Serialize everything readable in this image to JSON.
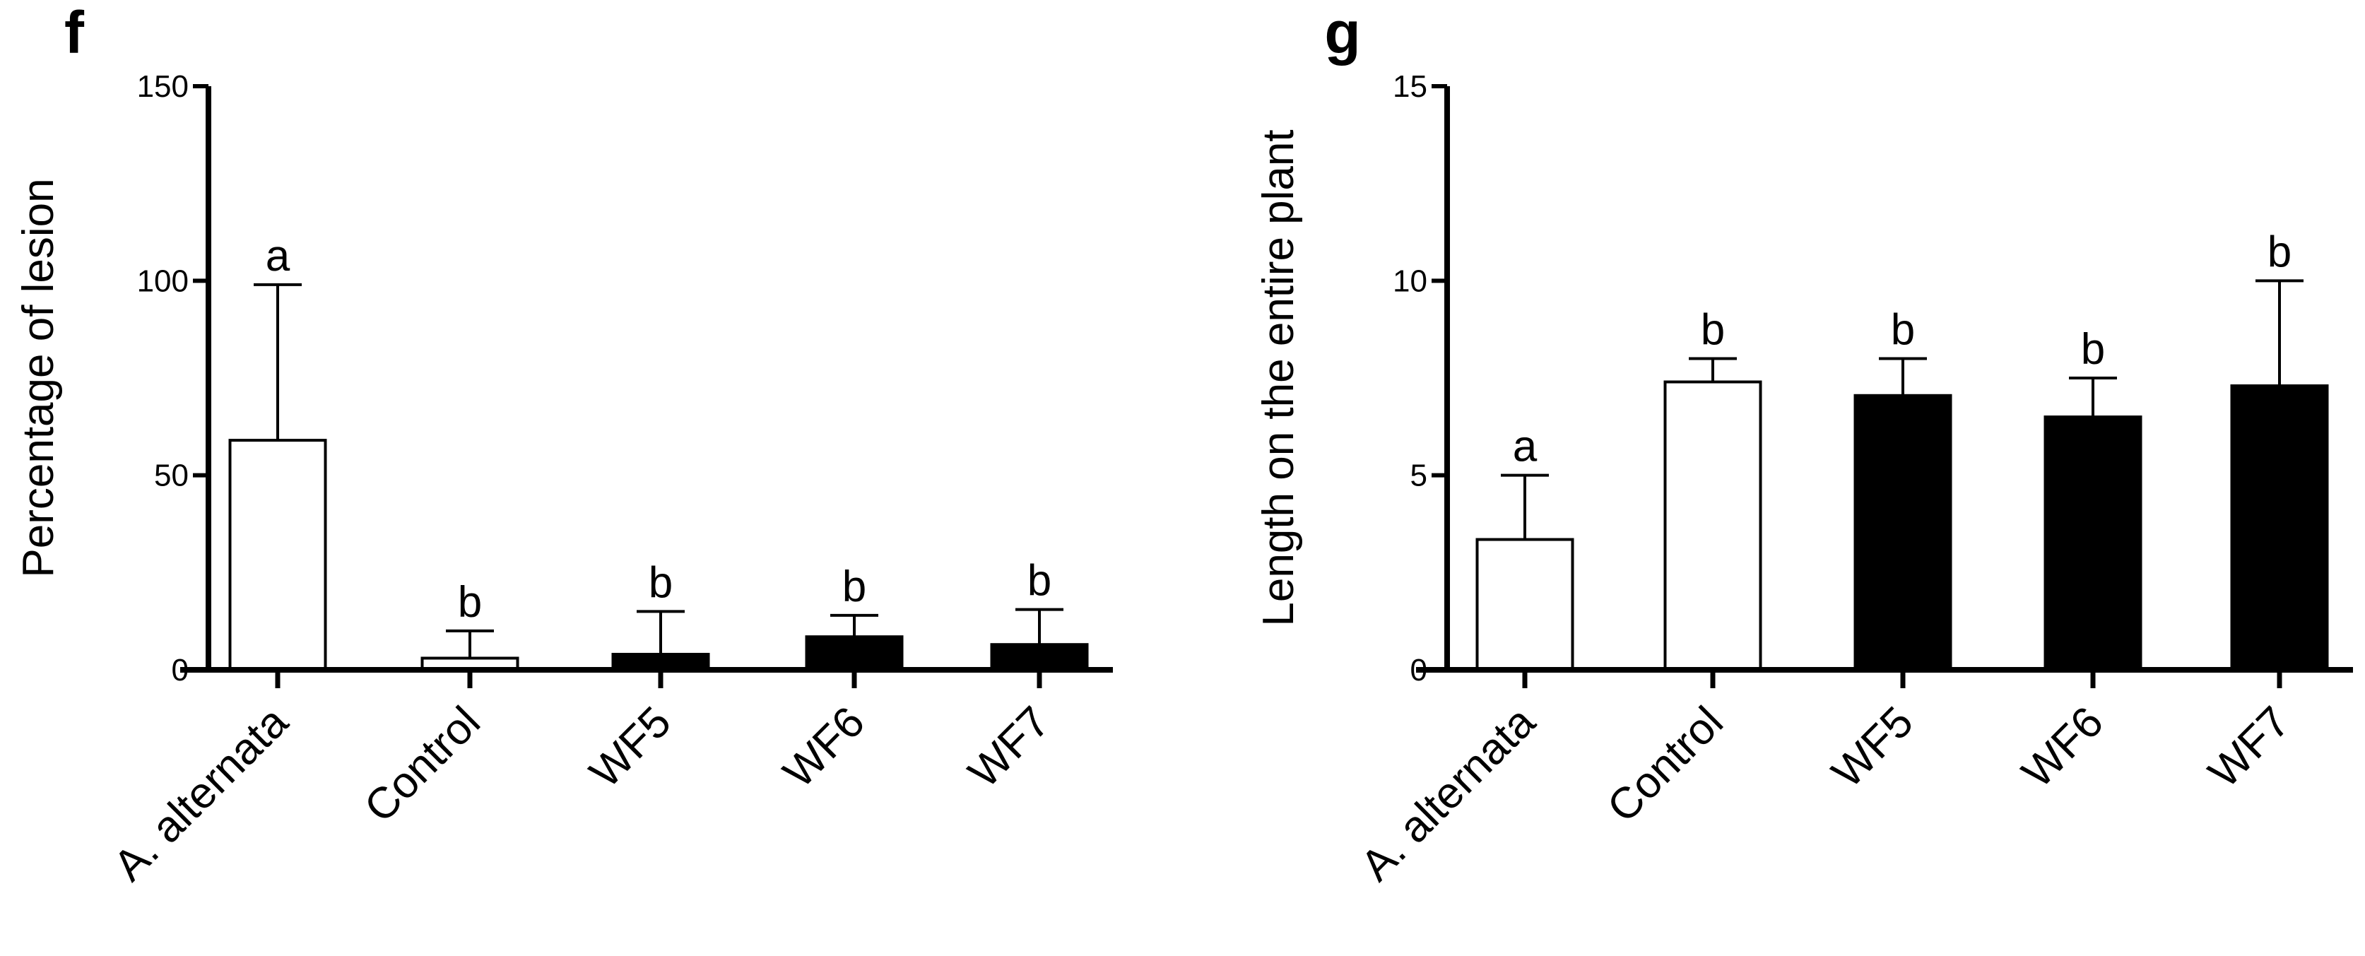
{
  "chart_data": [
    {
      "type": "bar",
      "panel": "f",
      "title": "",
      "xlabel": "",
      "ylabel": "Percentage of lesion",
      "ylim": [
        0,
        150
      ],
      "yticks": [
        0,
        50,
        100,
        150
      ],
      "categories": [
        "A. alternata",
        "Control",
        "WF5",
        "WF6",
        "WF7"
      ],
      "values": [
        59,
        3,
        4,
        8.5,
        6.5
      ],
      "errors": [
        40,
        7,
        11,
        5.5,
        9
      ],
      "significance": [
        "a",
        "b",
        "b",
        "b",
        "b"
      ],
      "bar_fill": [
        "#ffffff",
        "#ffffff",
        "#000000",
        "#000000",
        "#000000"
      ],
      "grid": false
    },
    {
      "type": "bar",
      "panel": "g",
      "title": "",
      "xlabel": "",
      "ylabel": "Length on the entire plant",
      "ylim": [
        0,
        15
      ],
      "yticks": [
        0,
        5,
        10,
        15
      ],
      "categories": [
        "A. alternata",
        "Control",
        "WF5",
        "WF6",
        "WF7"
      ],
      "values": [
        3.35,
        7.4,
        7.05,
        6.5,
        7.3
      ],
      "errors": [
        1.65,
        0.6,
        0.95,
        1.0,
        2.7
      ],
      "significance": [
        "a",
        "b",
        "b",
        "b",
        "b"
      ],
      "bar_fill": [
        "#ffffff",
        "#ffffff",
        "#000000",
        "#000000",
        "#000000"
      ],
      "grid": false
    }
  ]
}
